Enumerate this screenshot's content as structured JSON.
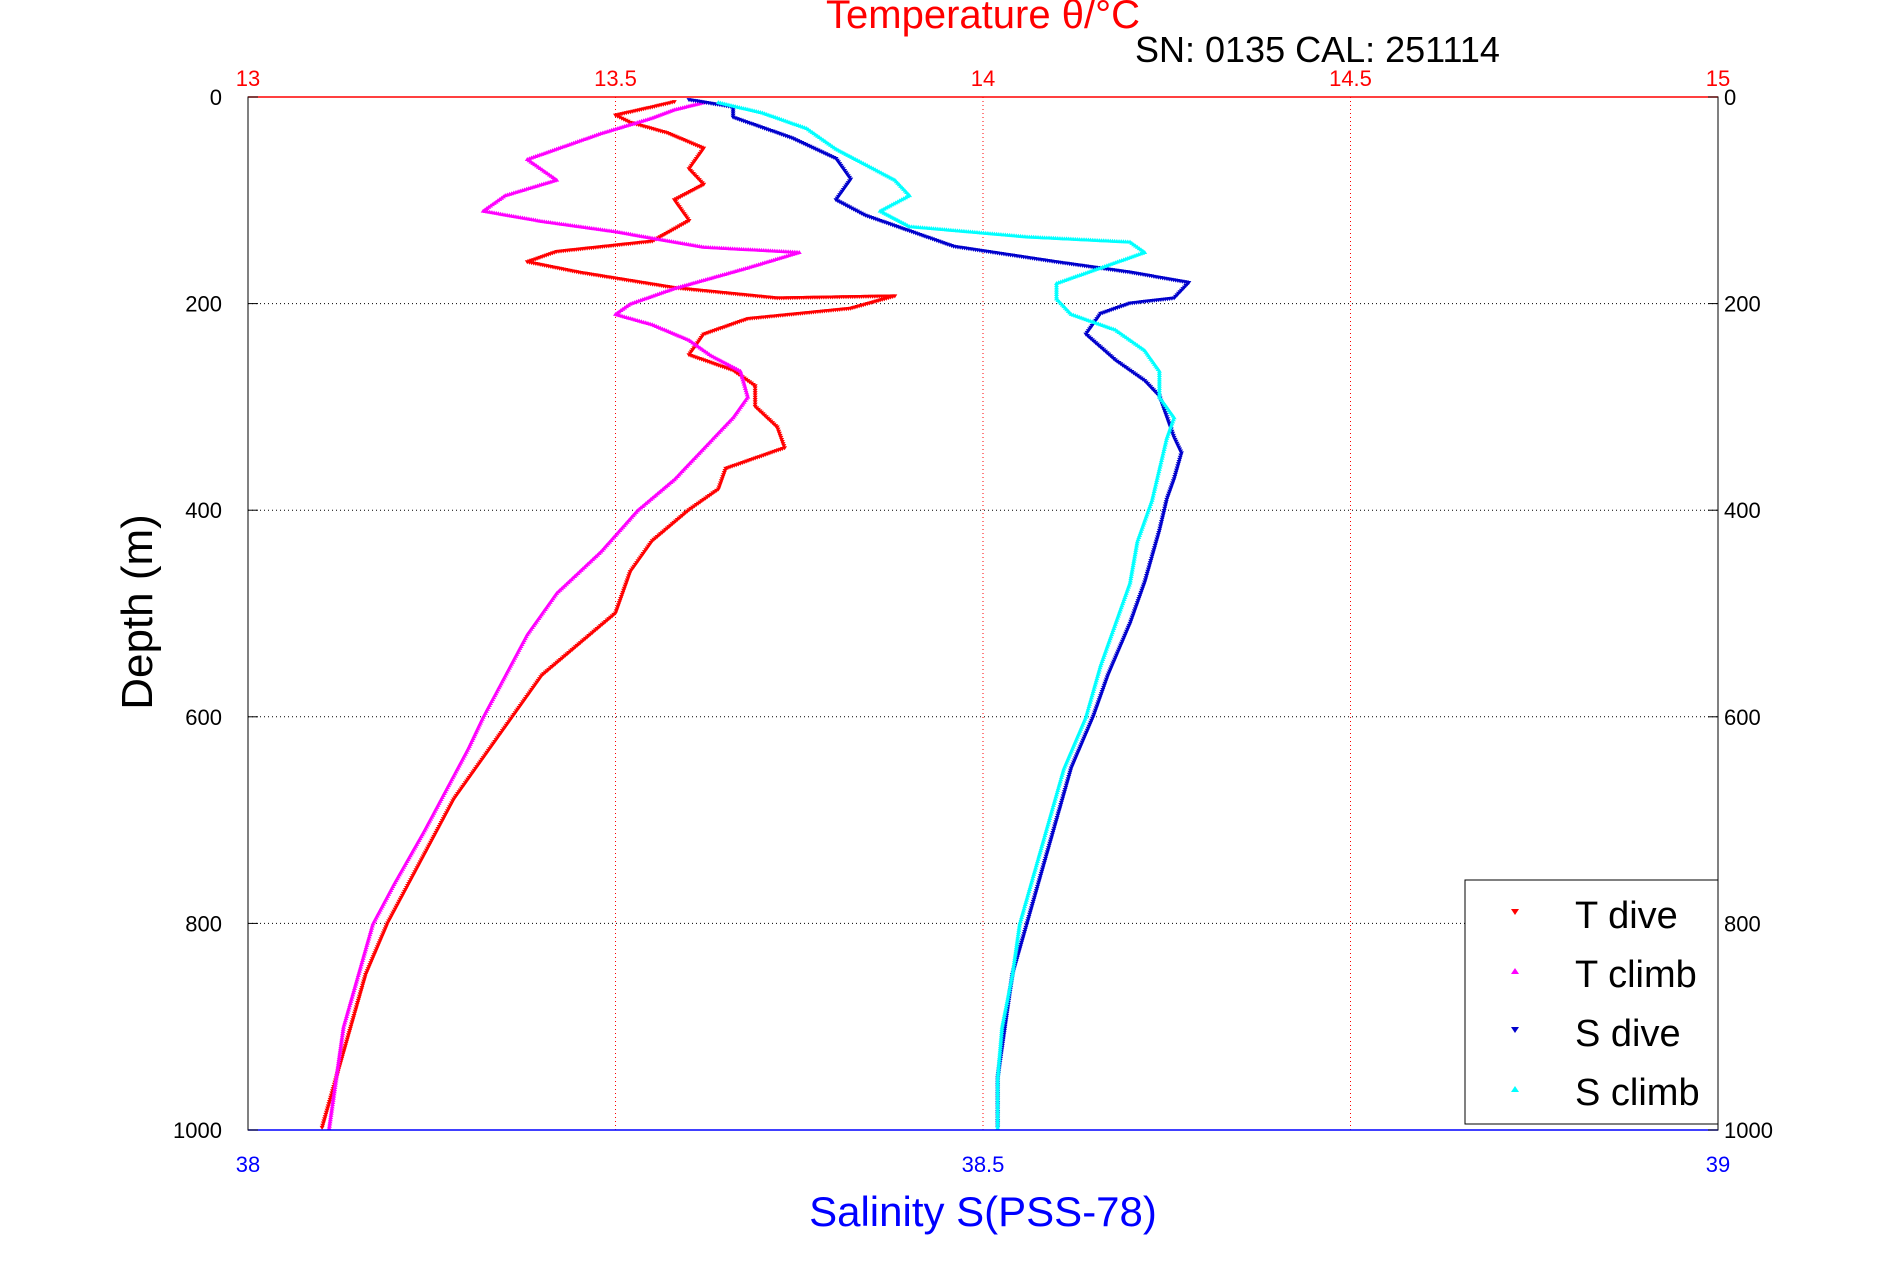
{
  "figure": {
    "serial_label": "SN: 0135  CAL: 251114"
  },
  "chart_data": {
    "type": "scatter",
    "title": "Temperature θ/°C",
    "ylabel": "Depth (m)",
    "xlabel": "Salinity S(PSS-78)",
    "colors": {
      "temperature_axis": "#ff0000",
      "salinity_axis": "#0000ff",
      "t_dive": "#ff0000",
      "t_climb": "#ff00ff",
      "s_dive": "#0000cc",
      "s_climb": "#00ffff"
    },
    "y_axis": {
      "range": [
        0,
        1000
      ],
      "reversed": true,
      "ticks": [
        0,
        200,
        400,
        600,
        800,
        1000
      ],
      "tick_labels": [
        "0",
        "200",
        "400",
        "600",
        "800",
        "1000"
      ],
      "grid": true
    },
    "temperature_axis": {
      "position": "top",
      "range": [
        13,
        15
      ],
      "ticks": [
        13,
        13.5,
        14,
        14.5,
        15
      ],
      "tick_labels": [
        "13",
        "13.5",
        "14",
        "14.5",
        "15"
      ],
      "grid": true
    },
    "salinity_axis": {
      "position": "bottom",
      "range": [
        38,
        39
      ],
      "ticks": [
        38,
        38.5,
        39
      ],
      "tick_labels": [
        "38",
        "38.5",
        "39"
      ]
    },
    "legend": {
      "placement": "bottom-right",
      "entries": [
        "T dive",
        "T climb",
        "S dive",
        "S climb"
      ]
    },
    "series": [
      {
        "name": "T dive",
        "axis": "temperature",
        "marker": "down-triangle",
        "points": [
          [
            13.58,
            5
          ],
          [
            13.55,
            10
          ],
          [
            13.5,
            18
          ],
          [
            13.52,
            25
          ],
          [
            13.57,
            35
          ],
          [
            13.62,
            50
          ],
          [
            13.6,
            70
          ],
          [
            13.62,
            85
          ],
          [
            13.58,
            100
          ],
          [
            13.6,
            120
          ],
          [
            13.55,
            140
          ],
          [
            13.42,
            150
          ],
          [
            13.38,
            160
          ],
          [
            13.45,
            170
          ],
          [
            13.58,
            185
          ],
          [
            13.72,
            195
          ],
          [
            13.88,
            193
          ],
          [
            13.82,
            205
          ],
          [
            13.68,
            215
          ],
          [
            13.62,
            230
          ],
          [
            13.6,
            250
          ],
          [
            13.66,
            265
          ],
          [
            13.69,
            280
          ],
          [
            13.69,
            300
          ],
          [
            13.72,
            320
          ],
          [
            13.73,
            340
          ],
          [
            13.65,
            360
          ],
          [
            13.64,
            380
          ],
          [
            13.6,
            400
          ],
          [
            13.55,
            430
          ],
          [
            13.52,
            460
          ],
          [
            13.5,
            500
          ],
          [
            13.45,
            530
          ],
          [
            13.4,
            560
          ],
          [
            13.36,
            600
          ],
          [
            13.32,
            640
          ],
          [
            13.28,
            680
          ],
          [
            13.25,
            720
          ],
          [
            13.22,
            760
          ],
          [
            13.19,
            800
          ],
          [
            13.16,
            850
          ],
          [
            13.14,
            900
          ],
          [
            13.12,
            950
          ],
          [
            13.1,
            1000
          ]
        ]
      },
      {
        "name": "T climb",
        "axis": "temperature",
        "marker": "up-triangle",
        "points": [
          [
            13.62,
            5
          ],
          [
            13.58,
            12
          ],
          [
            13.55,
            20
          ],
          [
            13.48,
            35
          ],
          [
            13.42,
            50
          ],
          [
            13.38,
            60
          ],
          [
            13.42,
            80
          ],
          [
            13.35,
            95
          ],
          [
            13.32,
            110
          ],
          [
            13.4,
            120
          ],
          [
            13.5,
            130
          ],
          [
            13.62,
            145
          ],
          [
            13.75,
            150
          ],
          [
            13.68,
            165
          ],
          [
            13.58,
            185
          ],
          [
            13.52,
            200
          ],
          [
            13.5,
            210
          ],
          [
            13.55,
            220
          ],
          [
            13.6,
            235
          ],
          [
            13.63,
            250
          ],
          [
            13.67,
            265
          ],
          [
            13.68,
            290
          ],
          [
            13.66,
            310
          ],
          [
            13.62,
            340
          ],
          [
            13.58,
            370
          ],
          [
            13.53,
            400
          ],
          [
            13.48,
            440
          ],
          [
            13.42,
            480
          ],
          [
            13.38,
            520
          ],
          [
            13.35,
            560
          ],
          [
            13.32,
            600
          ],
          [
            13.3,
            630
          ],
          [
            13.27,
            670
          ],
          [
            13.24,
            710
          ],
          [
            13.2,
            760
          ],
          [
            13.17,
            800
          ],
          [
            13.15,
            850
          ],
          [
            13.13,
            900
          ],
          [
            13.12,
            950
          ],
          [
            13.11,
            1000
          ]
        ]
      },
      {
        "name": "S dive",
        "axis": "salinity",
        "marker": "down-triangle",
        "points": [
          [
            38.3,
            3
          ],
          [
            38.33,
            10
          ],
          [
            38.33,
            20
          ],
          [
            38.37,
            40
          ],
          [
            38.4,
            60
          ],
          [
            38.41,
            80
          ],
          [
            38.4,
            100
          ],
          [
            38.42,
            115
          ],
          [
            38.45,
            130
          ],
          [
            38.48,
            145
          ],
          [
            38.55,
            160
          ],
          [
            38.6,
            170
          ],
          [
            38.64,
            180
          ],
          [
            38.63,
            195
          ],
          [
            38.6,
            200
          ],
          [
            38.58,
            210
          ],
          [
            38.57,
            230
          ],
          [
            38.59,
            255
          ],
          [
            38.61,
            275
          ],
          [
            38.62,
            290
          ],
          [
            38.625,
            310
          ],
          [
            38.63,
            330
          ],
          [
            38.635,
            345
          ],
          [
            38.63,
            370
          ],
          [
            38.625,
            390
          ],
          [
            38.62,
            420
          ],
          [
            38.61,
            470
          ],
          [
            38.6,
            510
          ],
          [
            38.585,
            560
          ],
          [
            38.575,
            600
          ],
          [
            38.56,
            650
          ],
          [
            38.55,
            700
          ],
          [
            38.54,
            750
          ],
          [
            38.53,
            800
          ],
          [
            38.52,
            850
          ],
          [
            38.515,
            900
          ],
          [
            38.51,
            950
          ],
          [
            38.51,
            1000
          ]
        ]
      },
      {
        "name": "S climb",
        "axis": "salinity",
        "marker": "up-triangle",
        "points": [
          [
            38.32,
            5
          ],
          [
            38.35,
            15
          ],
          [
            38.38,
            30
          ],
          [
            38.4,
            50
          ],
          [
            38.42,
            65
          ],
          [
            38.44,
            80
          ],
          [
            38.45,
            95
          ],
          [
            38.43,
            110
          ],
          [
            38.45,
            125
          ],
          [
            38.53,
            135
          ],
          [
            38.6,
            140
          ],
          [
            38.61,
            150
          ],
          [
            38.58,
            165
          ],
          [
            38.55,
            180
          ],
          [
            38.55,
            195
          ],
          [
            38.56,
            210
          ],
          [
            38.59,
            225
          ],
          [
            38.61,
            245
          ],
          [
            38.62,
            265
          ],
          [
            38.62,
            290
          ],
          [
            38.63,
            310
          ],
          [
            38.625,
            330
          ],
          [
            38.62,
            360
          ],
          [
            38.615,
            390
          ],
          [
            38.605,
            430
          ],
          [
            38.6,
            470
          ],
          [
            38.59,
            510
          ],
          [
            38.58,
            550
          ],
          [
            38.57,
            600
          ],
          [
            38.555,
            650
          ],
          [
            38.545,
            700
          ],
          [
            38.535,
            750
          ],
          [
            38.525,
            800
          ],
          [
            38.52,
            850
          ],
          [
            38.513,
            900
          ],
          [
            38.51,
            950
          ],
          [
            38.51,
            1000
          ]
        ]
      }
    ]
  }
}
